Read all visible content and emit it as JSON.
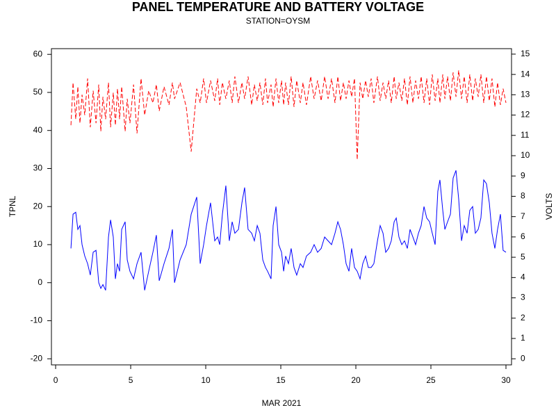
{
  "chart_data": {
    "type": "line",
    "title": "PANEL TEMPERATURE AND BATTERY VOLTAGE",
    "subtitle": "STATION=OYSM",
    "x_label": "MAR 2021",
    "y_label": "TPNL",
    "y2_label": "VOLTS",
    "grid": false,
    "x": [
      1.02,
      1.16,
      1.34,
      1.48,
      1.62,
      1.76,
      1.94,
      2.13,
      2.31,
      2.5,
      2.69,
      2.87,
      3.01,
      3.15,
      3.33,
      3.52,
      3.66,
      3.84,
      3.98,
      4.12,
      4.26,
      4.4,
      4.63,
      4.77,
      4.95,
      5.19,
      5.42,
      5.69,
      5.93,
      6.2,
      6.48,
      6.71,
      6.9,
      7.22,
      7.55,
      7.78,
      7.92,
      8.29,
      8.7,
      9.03,
      9.4,
      9.63,
      9.86,
      10.05,
      10.32,
      10.6,
      10.79,
      10.93,
      11.11,
      11.34,
      11.57,
      11.76,
      11.94,
      12.18,
      12.41,
      12.59,
      12.82,
      13.06,
      13.24,
      13.43,
      13.61,
      13.8,
      13.98,
      14.12,
      14.35,
      14.49,
      14.68,
      14.86,
      15.05,
      15.19,
      15.32,
      15.51,
      15.69,
      15.88,
      16.06,
      16.3,
      16.48,
      16.71,
      16.99,
      17.22,
      17.45,
      17.69,
      17.92,
      18.15,
      18.38,
      18.61,
      18.8,
      18.98,
      19.17,
      19.35,
      19.54,
      19.72,
      19.91,
      20.09,
      20.28,
      20.46,
      20.65,
      20.83,
      21.02,
      21.2,
      21.44,
      21.62,
      21.81,
      21.99,
      22.18,
      22.36,
      22.55,
      22.69,
      22.87,
      23.06,
      23.24,
      23.43,
      23.61,
      23.8,
      23.98,
      24.17,
      24.35,
      24.54,
      24.72,
      24.91,
      25.09,
      25.28,
      25.46,
      25.6,
      25.79,
      25.93,
      26.11,
      26.3,
      26.48,
      26.67,
      26.85,
      27.04,
      27.22,
      27.41,
      27.59,
      27.78,
      27.96,
      28.15,
      28.33,
      28.52,
      28.7,
      28.89,
      29.07,
      29.26,
      29.44,
      29.63,
      29.81,
      30.0
    ],
    "series": [
      {
        "name": "TPNL",
        "color": "#0000ff",
        "line_style": "solid",
        "values": [
          9,
          18,
          18.5,
          14,
          15,
          10,
          7,
          5,
          2,
          8,
          8.5,
          0,
          -1.5,
          -0.5,
          -2,
          12,
          16.5,
          12,
          1,
          5,
          3,
          14,
          16,
          6,
          3,
          1,
          5,
          8,
          -2,
          3,
          8,
          12.5,
          0.5,
          5,
          9,
          14,
          0,
          6,
          10,
          18,
          22.5,
          5,
          10,
          15,
          21,
          11,
          12,
          10,
          18,
          25.5,
          11,
          16,
          13,
          14,
          21,
          25,
          14,
          13,
          11,
          15,
          13,
          6,
          4,
          3,
          1,
          15,
          20,
          10,
          8,
          3,
          7,
          5,
          9,
          4,
          2,
          5,
          4,
          7,
          8,
          10,
          8,
          9,
          12,
          11,
          10,
          13,
          16,
          14,
          10,
          5,
          3,
          9,
          4,
          3,
          1,
          5,
          7,
          4,
          4,
          5,
          11,
          15,
          13,
          8,
          9,
          11,
          16,
          17,
          12,
          10,
          11,
          9,
          14,
          12,
          10,
          13,
          15,
          20,
          17,
          16,
          13,
          10,
          24,
          27,
          19,
          14,
          16,
          18,
          27.5,
          29.5,
          22,
          11,
          15,
          13,
          19,
          20,
          13,
          14,
          17,
          27,
          26,
          21,
          13,
          9,
          14,
          18,
          8.5,
          8
        ]
      },
      {
        "name": "VOLTS",
        "color": "#ff0000",
        "line_style": "dashed",
        "axis": "y2",
        "values": [
          11.5,
          13.6,
          11.8,
          13.4,
          11.6,
          13.0,
          12.0,
          13.8,
          11.4,
          13.2,
          11.6,
          13.5,
          11.2,
          12.9,
          11.8,
          13.6,
          11.4,
          13.1,
          11.5,
          13.3,
          11.8,
          13.4,
          11.2,
          12.8,
          11.6,
          13.5,
          11.1,
          13.8,
          12.0,
          13.2,
          12.6,
          13.5,
          12.2,
          13.4,
          12.5,
          13.6,
          12.8,
          13.6,
          12.4,
          10.2,
          13.3,
          12.6,
          13.8,
          12.6,
          13.7,
          12.7,
          13.8,
          12.5,
          13.6,
          12.8,
          13.7,
          12.6,
          13.9,
          12.6,
          13.6,
          12.8,
          13.9,
          12.5,
          13.5,
          12.7,
          13.6,
          12.5,
          13.8,
          12.6,
          13.5,
          12.4,
          13.8,
          12.6,
          13.7,
          12.5,
          13.6,
          12.5,
          13.9,
          12.4,
          13.7,
          12.6,
          13.6,
          12.5,
          13.9,
          12.8,
          13.7,
          12.7,
          13.9,
          12.8,
          13.8,
          12.6,
          13.9,
          12.7,
          13.6,
          12.8,
          13.7,
          12.9,
          13.8,
          9.8,
          13.6,
          12.8,
          13.7,
          12.9,
          13.8,
          12.6,
          13.9,
          12.7,
          13.6,
          12.8,
          13.7,
          12.6,
          13.9,
          12.8,
          13.6,
          12.7,
          13.8,
          12.5,
          13.9,
          12.6,
          13.7,
          12.8,
          13.9,
          12.6,
          13.8,
          12.5,
          14.0,
          12.7,
          13.8,
          12.6,
          14.0,
          12.8,
          13.9,
          12.7,
          14.1,
          12.9,
          14.2,
          12.8,
          13.9,
          12.6,
          14.0,
          12.7,
          13.8,
          12.9,
          14.0,
          12.6,
          13.9,
          12.7,
          13.8,
          12.4,
          13.6,
          12.5,
          13.3,
          12.6
        ]
      }
    ],
    "xlim": [
      -0.28,
      30.37
    ],
    "xticks": [
      0,
      5,
      10,
      15,
      20,
      25,
      30
    ],
    "ylim": [
      -21.6,
      61.5
    ],
    "yticks": [
      -20,
      -10,
      0,
      10,
      20,
      30,
      40,
      50,
      60
    ],
    "y2lim": [
      -0.3,
      15.27
    ],
    "y2ticks": [
      0,
      1,
      2,
      3,
      4,
      5,
      6,
      7,
      8,
      9,
      10,
      11,
      12,
      13,
      14,
      15
    ]
  }
}
